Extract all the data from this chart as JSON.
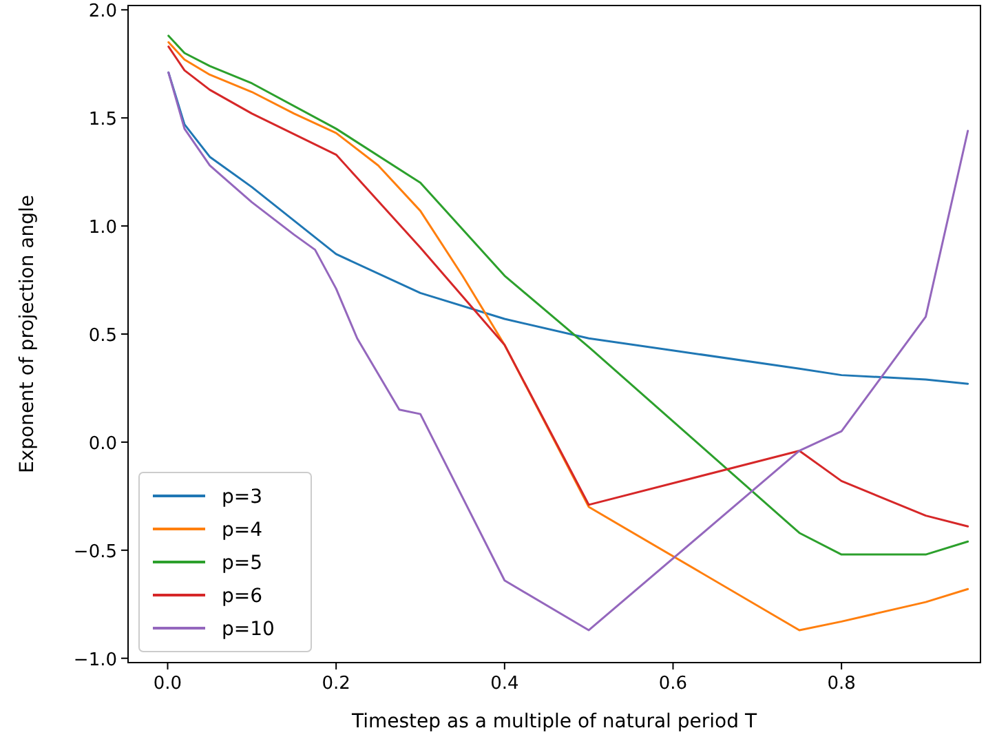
{
  "chart_data": {
    "type": "line",
    "xlabel": "Timestep as a multiple of natural period T",
    "ylabel": "Exponent of projection angle",
    "xlim": [
      -0.047,
      0.965
    ],
    "ylim": [
      -1.02,
      2.02
    ],
    "xticks": [
      {
        "value": 0,
        "label": "0.0"
      },
      0.2,
      0.4,
      0.6,
      0.8
    ],
    "yticks": [
      {
        "value": -1,
        "label": "−1.0"
      },
      {
        "value": -0.5,
        "label": "−0.5"
      },
      {
        "value": 0,
        "label": "0.0"
      },
      0.5,
      {
        "value": 1,
        "label": "1.0"
      },
      1.5,
      {
        "value": 2,
        "label": "2.0"
      }
    ],
    "grid": false,
    "legend": "bottom left",
    "line_style": "solid",
    "marker": "none",
    "series": [
      {
        "name": "p=3",
        "color": "#1f77b4",
        "x": [
          0.001,
          0.02,
          0.05,
          0.1,
          0.2,
          0.3,
          0.4,
          0.5,
          0.75,
          0.8,
          0.9,
          0.95
        ],
        "values": [
          1.71,
          1.47,
          1.32,
          1.18,
          0.87,
          0.69,
          0.57,
          0.48,
          0.34,
          0.31,
          0.29,
          0.27
        ]
      },
      {
        "name": "p=4",
        "color": "#ff7f0e",
        "x": [
          0.001,
          0.02,
          0.05,
          0.1,
          0.15,
          0.2,
          0.25,
          0.3,
          0.35,
          0.4,
          0.5,
          0.75,
          0.8,
          0.9,
          0.95
        ],
        "values": [
          1.85,
          1.77,
          1.7,
          1.62,
          1.52,
          1.43,
          1.28,
          1.07,
          0.77,
          0.45,
          -0.3,
          -0.87,
          -0.83,
          -0.74,
          -0.68
        ]
      },
      {
        "name": "p=5",
        "color": "#2ca02c",
        "x": [
          0.001,
          0.02,
          0.05,
          0.1,
          0.2,
          0.3,
          0.4,
          0.5,
          0.75,
          0.8,
          0.9,
          0.95
        ],
        "values": [
          1.88,
          1.8,
          1.74,
          1.66,
          1.45,
          1.2,
          0.77,
          0.44,
          -0.42,
          -0.52,
          -0.52,
          -0.46
        ]
      },
      {
        "name": "p=6",
        "color": "#d62728",
        "x": [
          0.001,
          0.02,
          0.05,
          0.1,
          0.2,
          0.3,
          0.4,
          0.5,
          0.75,
          0.8,
          0.9,
          0.95
        ],
        "values": [
          1.83,
          1.72,
          1.63,
          1.52,
          1.33,
          0.9,
          0.45,
          -0.29,
          -0.04,
          -0.18,
          -0.34,
          -0.39
        ]
      },
      {
        "name": "p=10",
        "color": "#9467bd",
        "x": [
          0.001,
          0.02,
          0.05,
          0.1,
          0.15,
          0.175,
          0.2,
          0.225,
          0.275,
          0.3,
          0.4,
          0.5,
          0.75,
          0.8,
          0.9,
          0.95
        ],
        "values": [
          1.71,
          1.45,
          1.28,
          1.11,
          0.96,
          0.89,
          0.71,
          0.48,
          0.15,
          0.13,
          -0.64,
          -0.87,
          -0.04,
          0.05,
          0.58,
          1.44
        ]
      }
    ]
  }
}
